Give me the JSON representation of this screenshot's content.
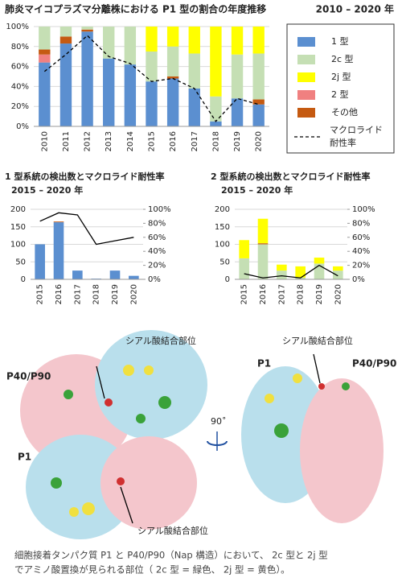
{
  "chart_data": [
    {
      "type": "bar",
      "stacked": true,
      "title": "肺炎マイコプラズマ分離株における P1 型の割合の年度推移",
      "subtitle": "2010 – 2020 年",
      "categories": [
        "2010",
        "2011",
        "2012",
        "2013",
        "2014",
        "2015",
        "2016",
        "2017",
        "2018",
        "2019",
        "2020"
      ],
      "series": [
        {
          "name": "1 型",
          "color": "#5b8fd0",
          "values": [
            64,
            83,
            95,
            68,
            62,
            45,
            48,
            38,
            5,
            28,
            22
          ]
        },
        {
          "name": "2c 型",
          "color": "#c5dfb4",
          "values": [
            23,
            10,
            3,
            32,
            38,
            30,
            30,
            35,
            25,
            44,
            46
          ]
        },
        {
          "name": "2j 型",
          "color": "#ffff00",
          "values": [
            0,
            0,
            0,
            0,
            0,
            25,
            20,
            27,
            70,
            28,
            27
          ]
        },
        {
          "name": "2 型",
          "color": "#f08080",
          "values": [
            8,
            0,
            0,
            0,
            0,
            0,
            0,
            0,
            0,
            0,
            0
          ]
        },
        {
          "name": "その他",
          "color": "#c55a11",
          "values": [
            5,
            7,
            2,
            0,
            0,
            0,
            2,
            0,
            0,
            0,
            5
          ]
        },
        {
          "name": "マクロライド耐性率",
          "type": "line",
          "color": "#000000",
          "values": [
            55,
            72,
            91,
            70,
            63,
            45,
            48,
            38,
            5,
            28,
            22
          ]
        }
      ],
      "ylim": [
        0,
        100
      ],
      "yticks": [
        {
          "value": 0,
          "label": "0%"
        },
        {
          "value": 20,
          "label": "20%"
        },
        {
          "value": 40,
          "label": "40%"
        },
        {
          "value": 60,
          "label": "60%"
        },
        {
          "value": 80,
          "label": "80%"
        },
        {
          "value": 100,
          "label": "100%"
        }
      ],
      "legend": "right"
    },
    {
      "type": "bar",
      "stacked": true,
      "title": "1 型系統の検出数とマクロライド耐性率",
      "subtitle": "2015 – 2020 年",
      "categories": [
        "2015",
        "2016",
        "2017",
        "2018",
        "2019",
        "2020"
      ],
      "series": [
        {
          "color": "#5b8fd0",
          "values": [
            100,
            163,
            25,
            2,
            25,
            10
          ]
        },
        {
          "color": "#c55a11",
          "values": [
            0,
            2,
            0,
            0,
            0,
            0
          ]
        },
        {
          "type": "line",
          "axis": "y2",
          "color": "#000000",
          "values": [
            83,
            95,
            92,
            50,
            55,
            60
          ]
        }
      ],
      "ylim": [
        0,
        200
      ],
      "yticks": [
        0,
        50,
        100,
        150,
        200
      ],
      "y2lim": [
        0,
        100
      ],
      "y2ticks": [
        {
          "value": 0,
          "label": "0%"
        },
        {
          "value": 20,
          "label": "20%"
        },
        {
          "value": 40,
          "label": "40%"
        },
        {
          "value": 60,
          "label": "60%"
        },
        {
          "value": 80,
          "label": "80%"
        },
        {
          "value": 100,
          "label": "100%"
        }
      ]
    },
    {
      "type": "bar",
      "stacked": true,
      "title": "2 型系統の検出数とマクロライド耐性率",
      "subtitle": "2015 – 2020 年",
      "categories": [
        "2015",
        "2016",
        "2017",
        "2018",
        "2019",
        "2020"
      ],
      "series": [
        {
          "color": "#c5dfb4",
          "values": [
            60,
            100,
            25,
            5,
            45,
            25
          ]
        },
        {
          "color": "#c55a11",
          "values": [
            0,
            3,
            0,
            0,
            0,
            0
          ]
        },
        {
          "color": "#ffff00",
          "values": [
            52,
            70,
            17,
            32,
            17,
            12
          ]
        },
        {
          "type": "line",
          "axis": "y2",
          "color": "#000000",
          "values": [
            8,
            2,
            5,
            2,
            20,
            5
          ]
        }
      ],
      "ylim": [
        0,
        200
      ],
      "yticks": [
        0,
        50,
        100,
        150,
        200
      ],
      "y2lim": [
        0,
        100
      ],
      "y2ticks": [
        {
          "value": 0,
          "label": "0%"
        },
        {
          "value": 20,
          "label": "20%"
        },
        {
          "value": 40,
          "label": "40%"
        },
        {
          "value": 60,
          "label": "60%"
        },
        {
          "value": 80,
          "label": "80%"
        },
        {
          "value": 100,
          "label": "100%"
        }
      ]
    }
  ],
  "figure": {
    "site_label_top_left": "シアル酸結合部位",
    "site_label_top_right": "シアル酸結合部位",
    "site_label_bottom": "シアル酸結合部位",
    "p40_left": "P40/P90",
    "p40_right": "P40/P90",
    "p1_left": "P1",
    "p1_right": "P1",
    "rotation": "90˚",
    "caption_line1": "細胞接着タンパク質 P1 と P40/P90（Nap 構造）において、 2c 型と 2j 型",
    "caption_line2": "でアミノ酸置換が見られる部位（ 2c 型 = 緑色、 2j 型 = 黄色）。"
  }
}
